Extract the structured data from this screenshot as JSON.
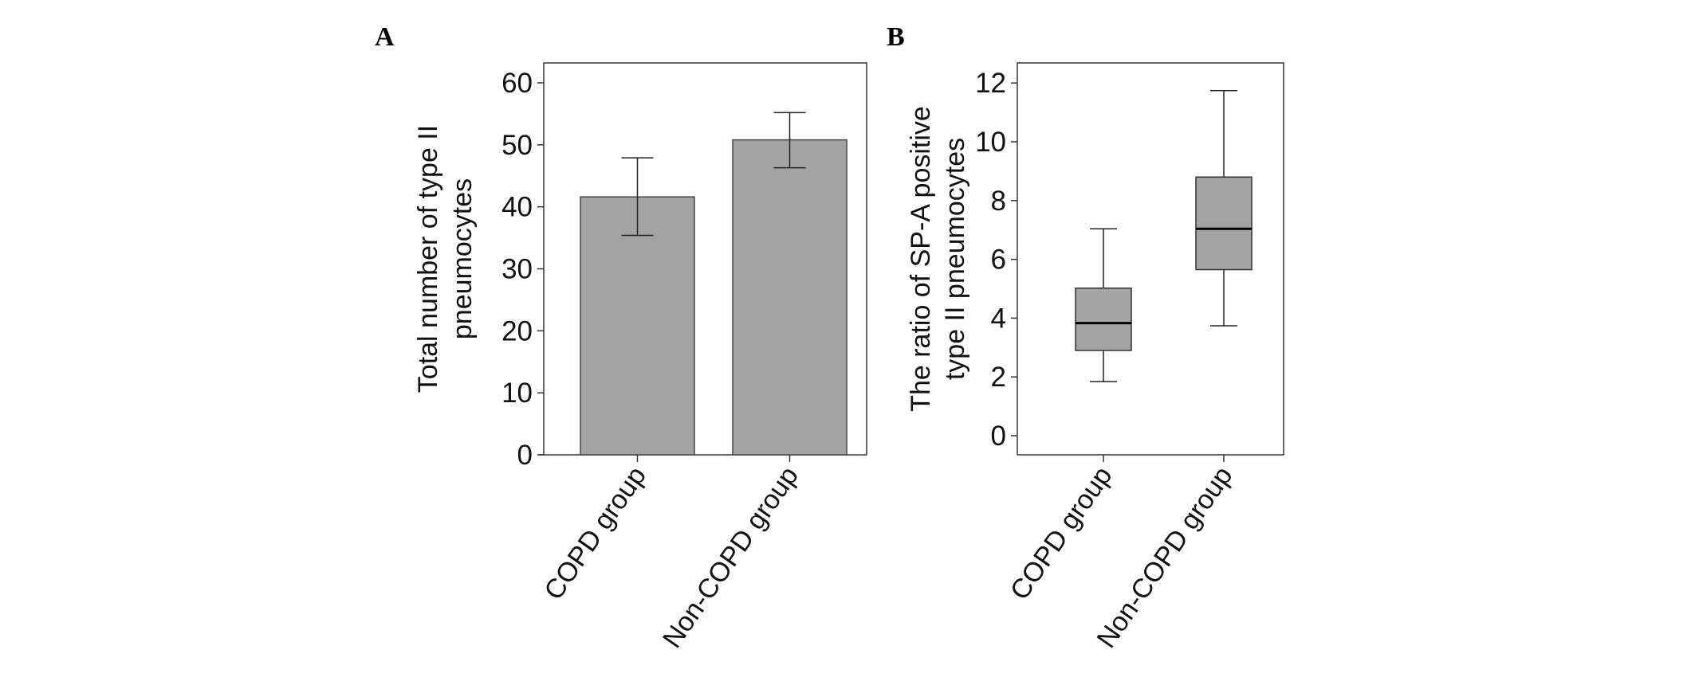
{
  "chart_data": [
    {
      "type": "bar",
      "panel_label": "A",
      "categories": [
        "COPD group",
        "Non-COPD group"
      ],
      "values": [
        41.6,
        50.8
      ],
      "error_upper": [
        47.9,
        55.2
      ],
      "error_lower": [
        35.4,
        46.3
      ],
      "ylabel": [
        "Total number of type II",
        "pneumocytes"
      ],
      "ylim": [
        0,
        63
      ],
      "yticks": [
        0,
        10,
        20,
        30,
        40,
        50,
        60
      ],
      "bar_color": "#a3a3a3",
      "grid": false
    },
    {
      "type": "boxplot",
      "panel_label": "B",
      "categories": [
        "COPD group",
        "Non-COPD group"
      ],
      "boxes": [
        {
          "whisker_low": 1.84,
          "q1": 2.9,
          "median": 3.83,
          "q3": 5.02,
          "whisker_high": 7.04
        },
        {
          "whisker_low": 3.74,
          "q1": 5.65,
          "median": 7.04,
          "q3": 8.8,
          "whisker_high": 11.74
        }
      ],
      "ylabel": [
        "The ratio of SP-A positive",
        "type II pneumocytes"
      ],
      "ylim": [
        -0.65,
        12.65
      ],
      "yticks": [
        0,
        2,
        4,
        6,
        8,
        10,
        12
      ],
      "box_color": "#a3a3a3",
      "grid": false
    }
  ]
}
